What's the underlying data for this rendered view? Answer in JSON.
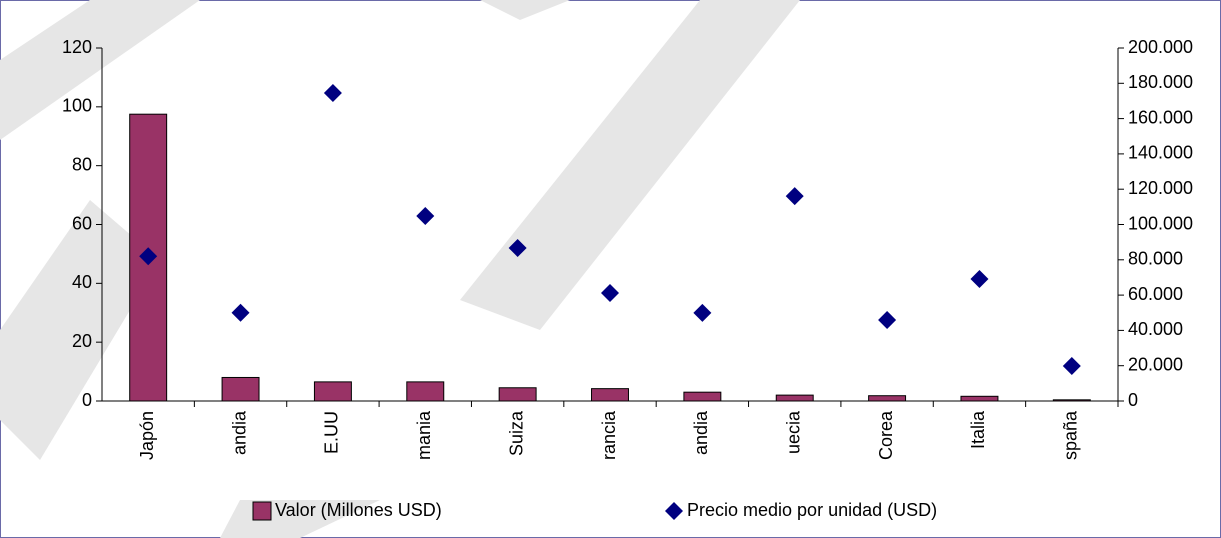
{
  "chart_data": {
    "type": "bar",
    "categories": [
      "Japón",
      "andia",
      "E.UU",
      "mania",
      "Suiza",
      "rancia",
      "andia",
      "uecia",
      "Corea",
      "Italia",
      "spaña"
    ],
    "series": [
      {
        "name": "Valor (Millones USD)",
        "type": "bar",
        "color": "#993366",
        "axis": "y",
        "values": [
          97.5,
          8,
          6.5,
          6.5,
          4.5,
          4.2,
          3,
          2,
          1.8,
          1.6,
          0.4
        ]
      },
      {
        "name": "Precio medio por unidad (USD)",
        "type": "scatter",
        "color": "#000080",
        "axis": "y2",
        "values": [
          82000,
          50000,
          174500,
          104800,
          86700,
          61200,
          49900,
          116100,
          45900,
          69100,
          19800
        ]
      }
    ],
    "ylim": [
      0,
      120
    ],
    "yticks": [
      0,
      20,
      40,
      60,
      80,
      100,
      120
    ],
    "y2lim": [
      0,
      200000
    ],
    "y2ticks": [
      0,
      {
        "value": 20000,
        "label": "20.000"
      },
      {
        "value": 40000,
        "label": "40.000"
      },
      {
        "value": 60000,
        "label": "60.000"
      },
      {
        "value": 80000,
        "label": "80.000"
      },
      {
        "value": 100000,
        "label": "100.000"
      },
      {
        "value": 120000,
        "label": "120.000"
      },
      {
        "value": 140000,
        "label": "140.000"
      },
      {
        "value": 160000,
        "label": "160.000"
      },
      {
        "value": 180000,
        "label": "180.000"
      },
      {
        "value": 200000,
        "label": "200.000"
      }
    ],
    "legend": "bottom"
  }
}
